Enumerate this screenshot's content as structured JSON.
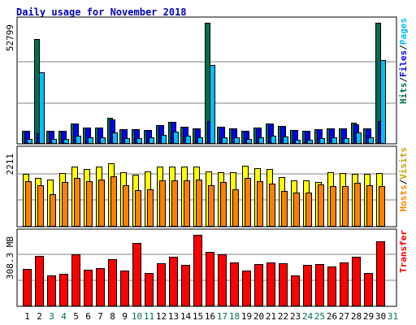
{
  "chart_data": {
    "type": "bar",
    "title": "Daily usage for November 2018",
    "categories": [
      "1",
      "2",
      "3",
      "4",
      "5",
      "6",
      "7",
      "8",
      "9",
      "10",
      "11",
      "12",
      "13",
      "14",
      "15",
      "16",
      "17",
      "18",
      "19",
      "20",
      "21",
      "22",
      "23",
      "24",
      "25",
      "26",
      "27",
      "28",
      "29",
      "30",
      "31"
    ],
    "weekend_days": [
      "3",
      "4",
      "10",
      "11",
      "17",
      "18",
      "24",
      "25",
      "31"
    ],
    "colors": {
      "hits": "#006e4f",
      "files": "#0000ff",
      "pages": "#00bfff",
      "visits": "#ffff00",
      "hosts": "#ff8000",
      "kbytes": "#ff0000",
      "title": "#0000c0",
      "weekday_label": "#000000",
      "weekend_label": "#006e4f",
      "ylabel_hits": "#006e4f",
      "ylabel_files": "#0000ff",
      "ylabel_pages": "#00bfff",
      "ylabel_hosts": "#ff8000",
      "ylabel_visits": "#c8a000",
      "ylabel_transfer": "#ff0000"
    },
    "panels": [
      {
        "id": "hits",
        "ymax": 52799,
        "ymax_label": "52799",
        "ylabel_parts": [
          {
            "text": "Hits",
            "color": "#006e4f"
          },
          {
            "text": "/",
            "color": "#000000"
          },
          {
            "text": "Files",
            "color": "#0000ff"
          },
          {
            "text": "/",
            "color": "#000000"
          },
          {
            "text": "Pages",
            "color": "#00bfff"
          }
        ],
        "series": [
          {
            "name": "Hits",
            "color": "#006e4f",
            "values": [
              5600,
              45700,
              5500,
              5500,
              8700,
              7200,
              7000,
              11500,
              6500,
              6300,
              6100,
              8300,
              9500,
              7500,
              6800,
              52799,
              7300,
              6900,
              5700,
              7000,
              8900,
              7700,
              5900,
              5700,
              6300,
              6800,
              6700,
              9200,
              6800,
              52799,
              0
            ]
          },
          {
            "name": "Files",
            "color": "#0000ff",
            "values": [
              5600,
              4700,
              5500,
              5500,
              8700,
              7200,
              7000,
              10500,
              6500,
              6300,
              6100,
              8300,
              9500,
              7500,
              6800,
              9900,
              7300,
              6900,
              5700,
              7000,
              8900,
              7700,
              5900,
              5700,
              6300,
              6800,
              6700,
              8400,
              6800,
              9900,
              0
            ]
          },
          {
            "name": "Pages",
            "color": "#00bfff",
            "values": [
              2000,
              31300,
              2300,
              2000,
              3400,
              2900,
              2800,
              4900,
              2500,
              2500,
              2700,
              4000,
              5300,
              3500,
              2900,
              34500,
              2900,
              2800,
              2100,
              3000,
              3600,
              3200,
              1900,
              1800,
              2400,
              2700,
              2500,
              4800,
              2700,
              36500,
              0
            ]
          }
        ]
      },
      {
        "id": "visits",
        "ymax": 2211,
        "ymax_label": "2211",
        "ylabel_parts": [
          {
            "text": "Hosts",
            "color": "#ff8000"
          },
          {
            "text": "/",
            "color": "#000000"
          },
          {
            "text": "Visits",
            "color": "#c8a000"
          }
        ],
        "series": [
          {
            "name": "Visits",
            "color": "#ffff00",
            "values": [
              1560,
              1450,
              1390,
              1590,
              1780,
              1710,
              1780,
              1880,
              1620,
              1540,
              1630,
              1780,
              1770,
              1770,
              1770,
              1640,
              1610,
              1610,
              1800,
              1730,
              1710,
              1460,
              1380,
              1380,
              1330,
              1610,
              1580,
              1560,
              1570,
              1580,
              0
            ]
          },
          {
            "name": "Hosts",
            "color": "#ff8000",
            "values": [
              1340,
              1220,
              970,
              1310,
              1450,
              1350,
              1390,
              1480,
              1230,
              1090,
              1110,
              1380,
              1380,
              1380,
              1390,
              1230,
              1320,
              1110,
              1430,
              1350,
              1280,
              1050,
              1010,
              1000,
              1250,
              1200,
              1210,
              1300,
              1230,
              1200,
              0
            ]
          }
        ]
      },
      {
        "id": "kbytes",
        "ymax": 440,
        "ymax_label": "308.3 MB",
        "ymax_label_value": 308.3,
        "ylabel_parts": [
          {
            "text": "Transfer",
            "color": "#ff0000"
          }
        ],
        "series": [
          {
            "name": "Transfer",
            "color": "#ff0000",
            "values": [
              230,
              310,
              190,
              200,
              320,
              225,
              235,
              290,
              220,
              390,
              205,
              265,
              305,
              255,
              438,
              335,
              320,
              270,
              220,
              260,
              270,
              265,
              192,
              255,
              258,
              245,
              270,
              305,
              205,
              400,
              0
            ]
          }
        ]
      }
    ]
  }
}
